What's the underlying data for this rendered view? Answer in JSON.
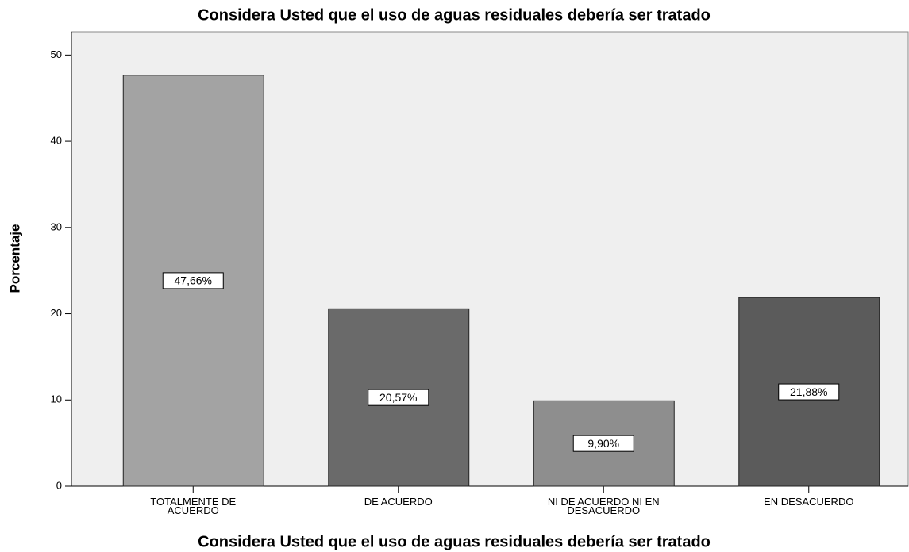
{
  "chart_data": {
    "type": "bar",
    "title": "Considera Usted que el uso de aguas residuales debería ser tratado",
    "x_label": "Considera Usted que el uso de aguas residuales debería ser tratado",
    "y_label": "Porcentaje",
    "categories": [
      "TOTALMENTE DE ACUERDO",
      "DE ACUERDO",
      "NI DE ACUERDO NI EN DESACUERDO",
      "EN DESACUERDO"
    ],
    "values": [
      47.66,
      20.57,
      9.9,
      21.88
    ],
    "value_labels": [
      "47,66%",
      "20,57%",
      "9,90%",
      "21,88%"
    ],
    "colors": [
      "#a3a3a3",
      "#6a6a6a",
      "#8e8e8e",
      "#5b5b5b"
    ],
    "ylim": [
      0,
      52.7
    ],
    "yticks": [
      0,
      10,
      20,
      30,
      40,
      50
    ]
  }
}
